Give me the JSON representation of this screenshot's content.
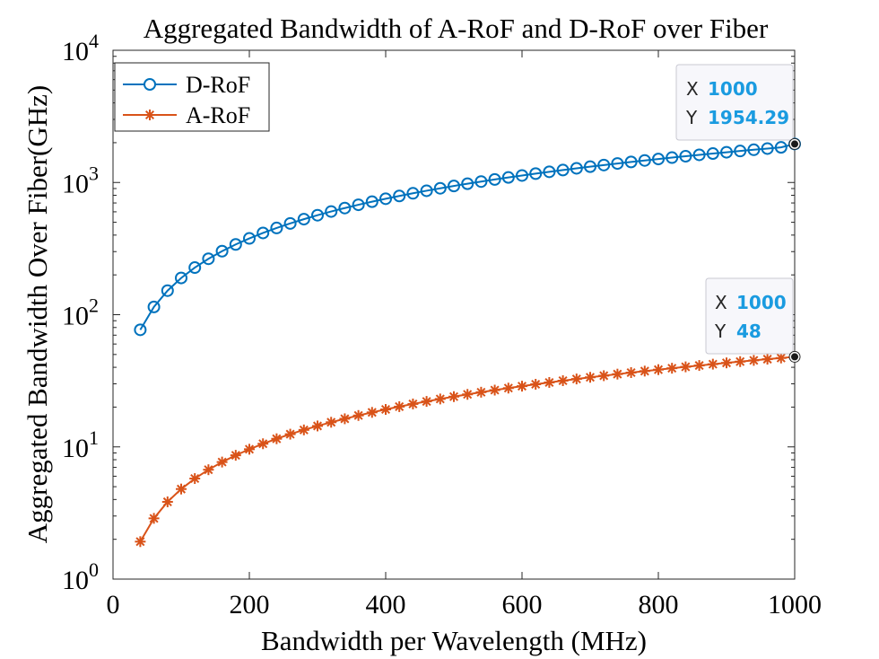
{
  "chart_data": {
    "type": "line",
    "title": "Aggregated Bandwidth of A-RoF and D-RoF over Fiber",
    "xlabel": "Bandwidth per Wavelength (MHz)",
    "ylabel": "Aggregated Bandwidth Over Fiber(GHz)",
    "xlim": [
      0,
      1000
    ],
    "ylim": [
      1,
      10000
    ],
    "yscale": "log",
    "x_ticks": [
      0,
      200,
      400,
      600,
      800,
      1000
    ],
    "y_tick_exponents": [
      0,
      1,
      2,
      3,
      4
    ],
    "y_tick_base": "10",
    "legend_position": "top-left",
    "x": [
      40,
      60,
      80,
      100,
      120,
      140,
      160,
      180,
      200,
      220,
      240,
      260,
      280,
      300,
      320,
      340,
      360,
      380,
      400,
      420,
      440,
      460,
      480,
      500,
      520,
      540,
      560,
      580,
      600,
      620,
      640,
      660,
      680,
      700,
      720,
      740,
      760,
      780,
      800,
      820,
      840,
      860,
      880,
      900,
      920,
      940,
      960,
      980,
      1000
    ],
    "series": [
      {
        "name": "D-RoF",
        "color": "#0072BD",
        "marker": "circle",
        "values": [
          76.83,
          114.42,
          152.0,
          189.59,
          227.17,
          264.76,
          302.34,
          339.93,
          377.51,
          415.1,
          452.68,
          490.27,
          527.85,
          565.44,
          603.02,
          640.61,
          678.19,
          715.78,
          753.36,
          790.95,
          828.53,
          866.12,
          903.7,
          941.29,
          978.87,
          1016.46,
          1054.04,
          1091.63,
          1129.21,
          1166.8,
          1204.38,
          1241.97,
          1279.55,
          1317.14,
          1354.72,
          1392.31,
          1429.89,
          1467.48,
          1505.06,
          1542.65,
          1580.23,
          1617.82,
          1655.4,
          1692.99,
          1730.57,
          1768.16,
          1805.74,
          1843.33,
          1954.29
        ]
      },
      {
        "name": "A-RoF",
        "color": "#D95319",
        "marker": "asterisk",
        "values": [
          1.92,
          2.88,
          3.84,
          4.8,
          5.76,
          6.72,
          7.68,
          8.64,
          9.6,
          10.56,
          11.52,
          12.48,
          13.44,
          14.4,
          15.36,
          16.32,
          17.28,
          18.24,
          19.2,
          20.16,
          21.12,
          22.08,
          23.04,
          24.0,
          24.96,
          25.92,
          26.88,
          27.84,
          28.8,
          29.76,
          30.72,
          31.68,
          32.64,
          33.6,
          34.56,
          35.52,
          36.48,
          37.44,
          38.4,
          39.36,
          40.32,
          41.28,
          42.24,
          43.2,
          44.16,
          45.12,
          46.08,
          47.04,
          48.0
        ]
      }
    ],
    "datatips": [
      {
        "series": "D-RoF",
        "x_label": "X",
        "x_value": "1000",
        "y_label": "Y",
        "y_value": "1954.29",
        "x": 1000,
        "y": 1954.29
      },
      {
        "series": "A-RoF",
        "x_label": "X",
        "x_value": "1000",
        "y_label": "Y",
        "y_value": "48",
        "x": 1000,
        "y": 48
      }
    ],
    "colors": {
      "datatip_value": "#1A9BE0",
      "datatip_label": "#262626",
      "datatip_bg": "#F7F7FB",
      "axis": "#262626"
    }
  }
}
